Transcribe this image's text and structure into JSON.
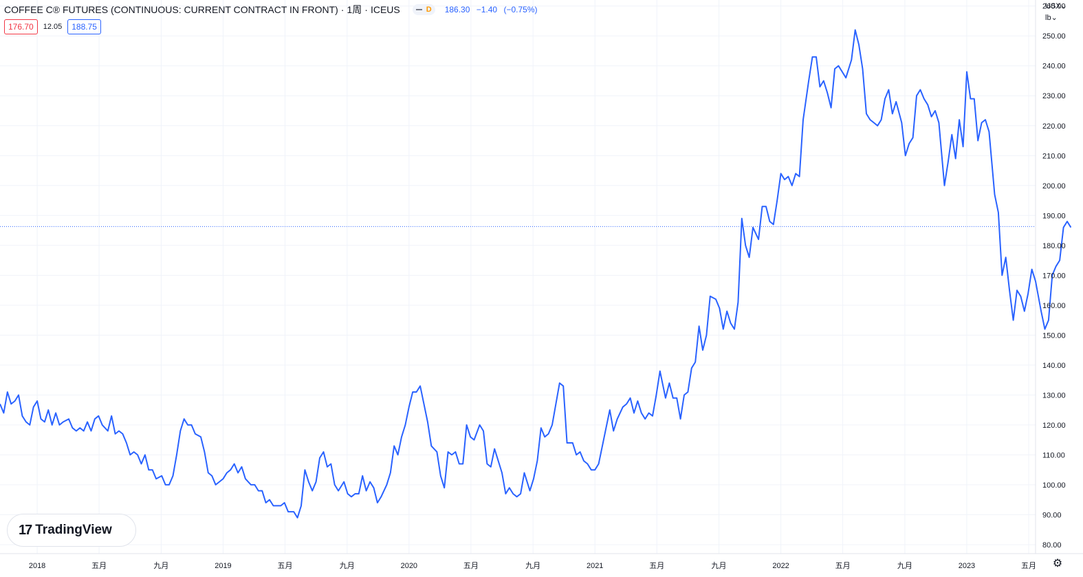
{
  "header": {
    "title": "COFFEE C® FUTURES (CONTINUOUS: CURRENT CONTRACT IN FRONT)",
    "interval": "1周",
    "exchange": "ICEUS",
    "interval_badge": "D",
    "quote": {
      "last": "186.30",
      "change": "−1.40",
      "change_pct": "(−0.75%)"
    }
  },
  "ohlc": {
    "bid": "176.70",
    "spread": "12.05",
    "ask": "188.75"
  },
  "currency_unit": {
    "currency": "USX",
    "unit": "lb"
  },
  "logo": {
    "mark": "17",
    "text": "TradingView"
  },
  "chart_data": {
    "type": "line",
    "y_axis_ticks": [
      "80.00",
      "90.00",
      "100.00",
      "110.00",
      "120.00",
      "130.00",
      "140.00",
      "150.00",
      "160.00",
      "170.00",
      "180.00",
      "190.00",
      "200.00",
      "210.00",
      "220.00",
      "230.00",
      "240.00",
      "250.00",
      "260.00"
    ],
    "x_axis_ticks": [
      {
        "label": "2018",
        "x": 2018.0
      },
      {
        "label": "五月",
        "x": 2018.333
      },
      {
        "label": "九月",
        "x": 2018.667
      },
      {
        "label": "2019",
        "x": 2019.0
      },
      {
        "label": "五月",
        "x": 2019.333
      },
      {
        "label": "九月",
        "x": 2019.667
      },
      {
        "label": "2020",
        "x": 2020.0
      },
      {
        "label": "五月",
        "x": 2020.333
      },
      {
        "label": "九月",
        "x": 2020.667
      },
      {
        "label": "2021",
        "x": 2021.0
      },
      {
        "label": "五月",
        "x": 2021.333
      },
      {
        "label": "九月",
        "x": 2021.667
      },
      {
        "label": "2022",
        "x": 2022.0
      },
      {
        "label": "五月",
        "x": 2022.333
      },
      {
        "label": "九月",
        "x": 2022.667
      },
      {
        "label": "2023",
        "x": 2023.0
      },
      {
        "label": "五月",
        "x": 2023.333
      }
    ],
    "x_range": [
      2017.8,
      2023.37
    ],
    "ylim": [
      77,
      262
    ],
    "grid": true,
    "current_price_line": 186.3,
    "line_color": "#2962ff",
    "series": [
      {
        "points": [
          [
            2017.8,
            127
          ],
          [
            2017.82,
            124
          ],
          [
            2017.84,
            131
          ],
          [
            2017.86,
            127
          ],
          [
            2017.88,
            128
          ],
          [
            2017.9,
            130
          ],
          [
            2017.92,
            123
          ],
          [
            2017.94,
            121
          ],
          [
            2017.96,
            120
          ],
          [
            2017.98,
            126
          ],
          [
            2018.0,
            128
          ],
          [
            2018.02,
            122
          ],
          [
            2018.04,
            121
          ],
          [
            2018.06,
            125
          ],
          [
            2018.08,
            120
          ],
          [
            2018.1,
            124
          ],
          [
            2018.12,
            120
          ],
          [
            2018.14,
            121
          ],
          [
            2018.17,
            122
          ],
          [
            2018.19,
            119
          ],
          [
            2018.21,
            118
          ],
          [
            2018.23,
            119
          ],
          [
            2018.25,
            118
          ],
          [
            2018.27,
            121
          ],
          [
            2018.29,
            118
          ],
          [
            2018.31,
            122
          ],
          [
            2018.33,
            123
          ],
          [
            2018.35,
            120
          ],
          [
            2018.38,
            118
          ],
          [
            2018.4,
            123
          ],
          [
            2018.42,
            117
          ],
          [
            2018.44,
            118
          ],
          [
            2018.46,
            117
          ],
          [
            2018.48,
            114
          ],
          [
            2018.5,
            110
          ],
          [
            2018.52,
            111
          ],
          [
            2018.54,
            110
          ],
          [
            2018.56,
            107
          ],
          [
            2018.58,
            110
          ],
          [
            2018.6,
            105
          ],
          [
            2018.62,
            105
          ],
          [
            2018.64,
            102
          ],
          [
            2018.67,
            103
          ],
          [
            2018.69,
            100
          ],
          [
            2018.71,
            100
          ],
          [
            2018.73,
            103
          ],
          [
            2018.75,
            110
          ],
          [
            2018.77,
            118
          ],
          [
            2018.79,
            122
          ],
          [
            2018.81,
            120
          ],
          [
            2018.83,
            120
          ],
          [
            2018.85,
            117
          ],
          [
            2018.88,
            116
          ],
          [
            2018.9,
            111
          ],
          [
            2018.92,
            104
          ],
          [
            2018.94,
            103
          ],
          [
            2018.96,
            100
          ],
          [
            2018.98,
            101
          ],
          [
            2019.0,
            102
          ],
          [
            2019.02,
            104
          ],
          [
            2019.04,
            105
          ],
          [
            2019.06,
            107
          ],
          [
            2019.08,
            104
          ],
          [
            2019.1,
            106
          ],
          [
            2019.12,
            102
          ],
          [
            2019.15,
            100
          ],
          [
            2019.17,
            100
          ],
          [
            2019.19,
            98
          ],
          [
            2019.21,
            98
          ],
          [
            2019.23,
            94
          ],
          [
            2019.25,
            95
          ],
          [
            2019.27,
            93
          ],
          [
            2019.29,
            93
          ],
          [
            2019.31,
            93
          ],
          [
            2019.33,
            94
          ],
          [
            2019.35,
            91
          ],
          [
            2019.38,
            91
          ],
          [
            2019.4,
            89
          ],
          [
            2019.42,
            93
          ],
          [
            2019.44,
            105
          ],
          [
            2019.46,
            101
          ],
          [
            2019.48,
            98
          ],
          [
            2019.5,
            101
          ],
          [
            2019.52,
            109
          ],
          [
            2019.54,
            111
          ],
          [
            2019.56,
            106
          ],
          [
            2019.58,
            107
          ],
          [
            2019.6,
            100
          ],
          [
            2019.62,
            98
          ],
          [
            2019.65,
            101
          ],
          [
            2019.67,
            97
          ],
          [
            2019.69,
            96
          ],
          [
            2019.71,
            97
          ],
          [
            2019.73,
            97
          ],
          [
            2019.75,
            103
          ],
          [
            2019.77,
            98
          ],
          [
            2019.79,
            101
          ],
          [
            2019.81,
            99
          ],
          [
            2019.83,
            94
          ],
          [
            2019.85,
            96
          ],
          [
            2019.88,
            100
          ],
          [
            2019.9,
            104
          ],
          [
            2019.92,
            113
          ],
          [
            2019.94,
            110
          ],
          [
            2019.96,
            116
          ],
          [
            2019.98,
            120
          ],
          [
            2020.0,
            126
          ],
          [
            2020.02,
            131
          ],
          [
            2020.04,
            131
          ],
          [
            2020.06,
            133
          ],
          [
            2020.08,
            127
          ],
          [
            2020.1,
            121
          ],
          [
            2020.12,
            113
          ],
          [
            2020.15,
            111
          ],
          [
            2020.17,
            103
          ],
          [
            2020.19,
            99
          ],
          [
            2020.21,
            111
          ],
          [
            2020.23,
            110
          ],
          [
            2020.25,
            111
          ],
          [
            2020.27,
            107
          ],
          [
            2020.29,
            107
          ],
          [
            2020.31,
            120
          ],
          [
            2020.33,
            116
          ],
          [
            2020.35,
            115
          ],
          [
            2020.38,
            120
          ],
          [
            2020.4,
            118
          ],
          [
            2020.42,
            107
          ],
          [
            2020.44,
            106
          ],
          [
            2020.46,
            112
          ],
          [
            2020.48,
            108
          ],
          [
            2020.5,
            104
          ],
          [
            2020.52,
            97
          ],
          [
            2020.54,
            99
          ],
          [
            2020.56,
            97
          ],
          [
            2020.58,
            96
          ],
          [
            2020.6,
            97
          ],
          [
            2020.62,
            104
          ],
          [
            2020.65,
            98
          ],
          [
            2020.67,
            102
          ],
          [
            2020.69,
            108
          ],
          [
            2020.71,
            119
          ],
          [
            2020.73,
            116
          ],
          [
            2020.75,
            117
          ],
          [
            2020.77,
            120
          ],
          [
            2020.79,
            127
          ],
          [
            2020.81,
            134
          ],
          [
            2020.83,
            133
          ],
          [
            2020.85,
            114
          ],
          [
            2020.88,
            114
          ],
          [
            2020.9,
            110
          ],
          [
            2020.92,
            111
          ],
          [
            2020.94,
            108
          ],
          [
            2020.96,
            107
          ],
          [
            2020.98,
            105
          ],
          [
            2021.0,
            105
          ],
          [
            2021.02,
            107
          ],
          [
            2021.04,
            113
          ],
          [
            2021.06,
            119
          ],
          [
            2021.08,
            125
          ],
          [
            2021.1,
            118
          ],
          [
            2021.12,
            122
          ],
          [
            2021.15,
            126
          ],
          [
            2021.17,
            127
          ],
          [
            2021.19,
            129
          ],
          [
            2021.21,
            124
          ],
          [
            2021.23,
            128
          ],
          [
            2021.25,
            124
          ],
          [
            2021.27,
            122
          ],
          [
            2021.29,
            124
          ],
          [
            2021.31,
            123
          ],
          [
            2021.33,
            130
          ],
          [
            2021.35,
            138
          ],
          [
            2021.38,
            129
          ],
          [
            2021.4,
            134
          ],
          [
            2021.42,
            129
          ],
          [
            2021.44,
            129
          ],
          [
            2021.46,
            122
          ],
          [
            2021.48,
            130
          ],
          [
            2021.5,
            131
          ],
          [
            2021.52,
            139
          ],
          [
            2021.54,
            141
          ],
          [
            2021.56,
            153
          ],
          [
            2021.58,
            145
          ],
          [
            2021.6,
            150
          ],
          [
            2021.62,
            163
          ],
          [
            2021.65,
            162
          ],
          [
            2021.67,
            159
          ],
          [
            2021.69,
            152
          ],
          [
            2021.71,
            158
          ],
          [
            2021.73,
            154
          ],
          [
            2021.75,
            152
          ],
          [
            2021.77,
            161
          ],
          [
            2021.79,
            189
          ],
          [
            2021.81,
            180
          ],
          [
            2021.83,
            176
          ],
          [
            2021.85,
            186
          ],
          [
            2021.88,
            182
          ],
          [
            2021.9,
            193
          ],
          [
            2021.92,
            193
          ],
          [
            2021.94,
            188
          ],
          [
            2021.96,
            187
          ],
          [
            2021.98,
            195
          ],
          [
            2022.0,
            204
          ],
          [
            2022.02,
            202
          ],
          [
            2022.04,
            203
          ],
          [
            2022.06,
            200
          ],
          [
            2022.08,
            204
          ],
          [
            2022.1,
            203
          ],
          [
            2022.12,
            222
          ],
          [
            2022.15,
            235
          ],
          [
            2022.17,
            243
          ],
          [
            2022.19,
            243
          ],
          [
            2022.21,
            233
          ],
          [
            2022.23,
            235
          ],
          [
            2022.25,
            231
          ],
          [
            2022.27,
            226
          ],
          [
            2022.29,
            239
          ],
          [
            2022.31,
            240
          ],
          [
            2022.33,
            238
          ],
          [
            2022.35,
            236
          ],
          [
            2022.38,
            242
          ],
          [
            2022.4,
            252
          ],
          [
            2022.42,
            247
          ],
          [
            2022.44,
            239
          ],
          [
            2022.46,
            224
          ],
          [
            2022.48,
            222
          ],
          [
            2022.5,
            221
          ],
          [
            2022.52,
            220
          ],
          [
            2022.54,
            222
          ],
          [
            2022.56,
            229
          ],
          [
            2022.58,
            232
          ],
          [
            2022.6,
            224
          ],
          [
            2022.62,
            228
          ],
          [
            2022.65,
            221
          ],
          [
            2022.67,
            210
          ],
          [
            2022.69,
            214
          ],
          [
            2022.71,
            216
          ],
          [
            2022.73,
            230
          ],
          [
            2022.75,
            232
          ],
          [
            2022.77,
            229
          ],
          [
            2022.79,
            227
          ],
          [
            2022.81,
            223
          ],
          [
            2022.83,
            225
          ],
          [
            2022.85,
            221
          ],
          [
            2022.88,
            200
          ],
          [
            2022.9,
            208
          ],
          [
            2022.92,
            217
          ],
          [
            2022.94,
            209
          ],
          [
            2022.96,
            222
          ],
          [
            2022.98,
            213
          ],
          [
            2023.0,
            238
          ],
          [
            2023.02,
            229
          ],
          [
            2023.04,
            229
          ],
          [
            2023.06,
            215
          ],
          [
            2023.08,
            221
          ],
          [
            2023.1,
            222
          ],
          [
            2023.12,
            218
          ],
          [
            2023.15,
            197
          ],
          [
            2023.17,
            191
          ],
          [
            2023.19,
            170
          ],
          [
            2023.21,
            176
          ],
          [
            2023.23,
            165
          ],
          [
            2023.25,
            155
          ],
          [
            2023.27,
            165
          ],
          [
            2023.29,
            163
          ],
          [
            2023.31,
            158
          ],
          [
            2023.33,
            164
          ],
          [
            2023.35,
            172
          ],
          [
            2023.37,
            168
          ],
          [
            2023.4,
            158
          ],
          [
            2023.42,
            152
          ],
          [
            2023.44,
            155
          ],
          [
            2023.46,
            170
          ],
          [
            2023.48,
            173
          ],
          [
            2023.5,
            175
          ],
          [
            2023.52,
            186
          ],
          [
            2023.54,
            188
          ],
          [
            2023.56,
            186
          ]
        ]
      }
    ]
  }
}
